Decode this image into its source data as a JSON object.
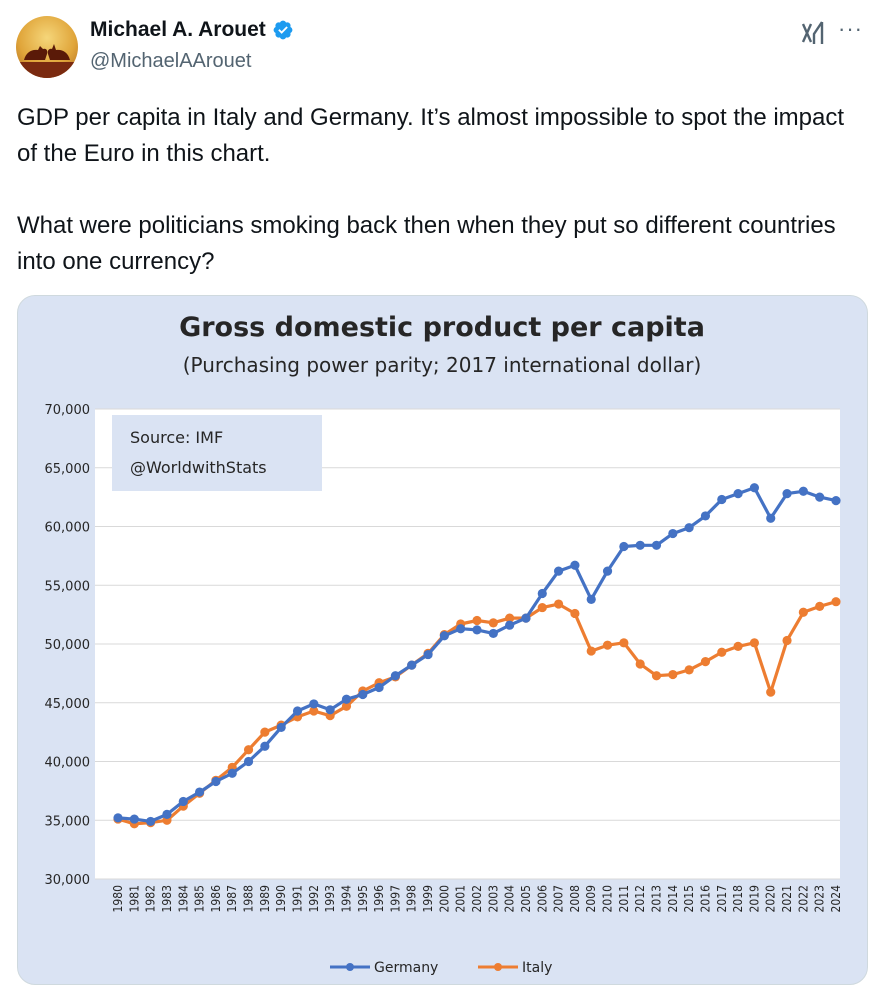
{
  "author": {
    "name": "Michael A. Arouet",
    "handle": "@MichaelAArouet",
    "verified": true,
    "avatar_icon": "bull-bear-avatar"
  },
  "header_icons": [
    "grok-icon",
    "more-icon"
  ],
  "more_label": "···",
  "tweet": {
    "text": "GDP per capita in Italy and Germany. It’s almost impossible to spot the impact of the Euro in this chart.\n\nWhat were politicians smoking back then when they put so different countries into one currency?"
  },
  "colors": {
    "germany": "#4472c4",
    "italy": "#ed7d31",
    "chart_bg": "#dae3f3",
    "plot_bg": "#ffffff",
    "verified": "#1d9bf0"
  },
  "chart_data": {
    "type": "line",
    "title": "Gross domestic product per capita",
    "subtitle": "(Purchasing power parity; 2017 international dollar)",
    "annotation": [
      "Source: IMF",
      "@WorldwithStats"
    ],
    "xlabel": "",
    "ylabel": "",
    "ylim": [
      30000,
      70000
    ],
    "yticks": [
      30000,
      35000,
      40000,
      45000,
      50000,
      55000,
      60000,
      65000,
      70000
    ],
    "ytick_labels": [
      "30,000",
      "35,000",
      "40,000",
      "45,000",
      "50,000",
      "55,000",
      "60,000",
      "65,000",
      "70,000"
    ],
    "legend_position": "bottom",
    "grid": true,
    "x": [
      "1980",
      "1981",
      "1982",
      "1983",
      "1984",
      "1985",
      "1986",
      "1987",
      "1988",
      "1989",
      "1990",
      "1991",
      "1992",
      "1993",
      "1994",
      "1995",
      "1996",
      "1997",
      "1998",
      "1999",
      "2000",
      "2001",
      "2002",
      "2003",
      "2004",
      "2005",
      "2006",
      "2007",
      "2008",
      "2009",
      "2010",
      "2011",
      "2012",
      "2013",
      "2014",
      "2015",
      "2016",
      "2017",
      "2018",
      "2019",
      "2020",
      "2021",
      "2022",
      "2023",
      "2024"
    ],
    "series": [
      {
        "name": "Germany",
        "values": [
          35200,
          35100,
          34900,
          35500,
          36600,
          37400,
          38300,
          39000,
          40000,
          41300,
          42900,
          44300,
          44900,
          44400,
          45300,
          45700,
          46300,
          47300,
          48200,
          49100,
          50700,
          51300,
          51200,
          50900,
          51600,
          52200,
          54300,
          56200,
          56700,
          53800,
          56200,
          58300,
          58400,
          58400,
          59400,
          59900,
          60900,
          62300,
          62800,
          63300,
          60700,
          62800,
          63000,
          62500,
          62200
        ]
      },
      {
        "name": "Italy",
        "values": [
          35100,
          34700,
          34800,
          35000,
          36200,
          37300,
          38400,
          39500,
          41000,
          42500,
          43100,
          43800,
          44300,
          43900,
          44700,
          46000,
          46700,
          47200,
          48200,
          49200,
          50800,
          51700,
          52000,
          51800,
          52200,
          52200,
          53100,
          53400,
          52600,
          49400,
          49900,
          50100,
          48300,
          47300,
          47400,
          47800,
          48500,
          49300,
          49800,
          50100,
          45900,
          50300,
          52700,
          53200,
          53600
        ]
      }
    ]
  }
}
